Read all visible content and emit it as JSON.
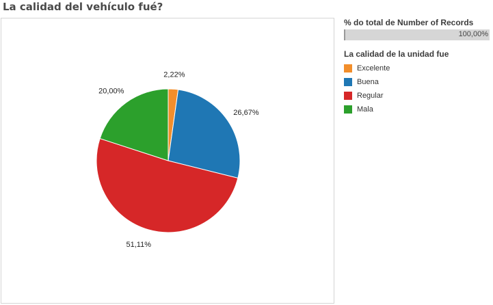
{
  "page": {
    "title": "La calidad del vehículo fué?"
  },
  "size_legend": {
    "title": "% do total de Number of Records",
    "value_label": "100,00%",
    "fill_fraction": 1.0
  },
  "color_legend": {
    "title": "La calidad de la unidad fue",
    "items": [
      {
        "label": "Excelente",
        "color": "#f28e2b"
      },
      {
        "label": "Buena",
        "color": "#1f77b4"
      },
      {
        "label": "Regular",
        "color": "#d62728"
      },
      {
        "label": "Mala",
        "color": "#2ca02c"
      }
    ]
  },
  "chart_data": {
    "type": "pie",
    "title": "La calidad del vehículo fué?",
    "categories": [
      "Excelente",
      "Buena",
      "Regular",
      "Mala"
    ],
    "values": [
      2.22,
      26.67,
      51.11,
      20.0
    ],
    "value_labels": [
      "2,22%",
      "26,67%",
      "51,11%",
      "20,00%"
    ],
    "colors": [
      "#f28e2b",
      "#1f77b4",
      "#d62728",
      "#2ca02c"
    ],
    "start": "12 o'clock",
    "direction": "clockwise",
    "legend": "right"
  }
}
